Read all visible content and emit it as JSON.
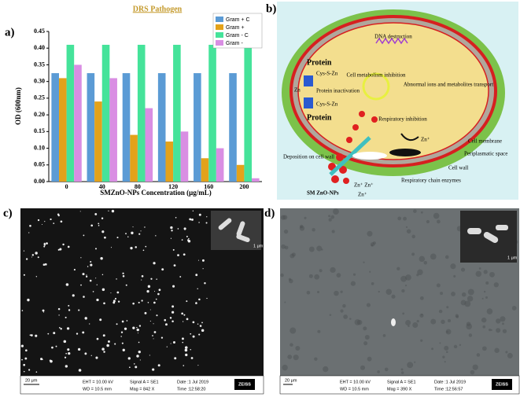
{
  "chart_data": {
    "type": "bar",
    "title": "DRS Pathogen",
    "x_label": "SMZnO-NPs Concentration (μg/mL)",
    "y_label": "OD (600nm)",
    "categories": [
      "0",
      "40",
      "80",
      "120",
      "160",
      "200"
    ],
    "series": [
      {
        "name": "Gram + C",
        "color": "#5b9bd5",
        "values": [
          0.325,
          0.325,
          0.325,
          0.325,
          0.325,
          0.325
        ]
      },
      {
        "name": "Gram +",
        "color": "#e3a21a",
        "values": [
          0.31,
          0.24,
          0.14,
          0.12,
          0.07,
          0.05
        ]
      },
      {
        "name": "Gram - C",
        "color": "#45e39a",
        "values": [
          0.41,
          0.41,
          0.41,
          0.41,
          0.41,
          0.41
        ]
      },
      {
        "name": "Gram -",
        "color": "#d98ee3",
        "values": [
          0.35,
          0.31,
          0.22,
          0.15,
          0.1,
          0.01
        ]
      }
    ],
    "ylim": [
      0,
      0.45
    ],
    "yticks": [
      {
        "value": 0,
        "label": "0.00"
      },
      {
        "value": 0.05,
        "label": "0.05"
      },
      {
        "value": 0.1,
        "label": "0.10"
      },
      {
        "value": 0.15,
        "label": "0.15"
      },
      {
        "value": 0.2,
        "label": "0.20"
      },
      {
        "value": 0.25,
        "label": "0.25"
      },
      {
        "value": 0.3,
        "label": "0.30"
      },
      {
        "value": 0.35,
        "label": "0.35"
      },
      {
        "value": 0.4,
        "label": "0.40"
      },
      {
        "value": 0.45,
        "label": "0.45"
      }
    ],
    "legend": "upper right"
  },
  "panel_labels": [
    "a)",
    "b)",
    "c)",
    "d)"
  ],
  "diagram": {
    "dna": "DNA destruction",
    "protein_top": "Protein",
    "cys_top": "Cys-S-Zn",
    "zn": "Zn",
    "inactivation": "Protein inactivation",
    "cys_bottom": "Cys-S-Zn",
    "protein_bottom": "Protein",
    "metabolism": "Cell metabolism inhibition",
    "abnormal": "Abnormal ions and metabolites transport",
    "respiratory": "Respiratory inhibition",
    "zn_plus": "Zn⁺",
    "membrane": "Cell membrane",
    "periplasm": "Periplasmatic space",
    "wall": "Cell wall",
    "deposition": "Deposition on cell wall",
    "nps": "SM ZnO-NPs",
    "zn_ions": "Zn⁺ Zn⁺",
    "zn_ion": "Zn⁺",
    "chain": "Respiratory chain enzymes"
  },
  "sem_c": {
    "scale": "20 μm",
    "inset_scale": "1 μm",
    "eht": "EHT = 10.00 kV",
    "wd": "WD = 10.5 mm",
    "signal": "Signal A = SE1",
    "mag": "Mag =   842 X",
    "date": "Date :1 Jul 2019",
    "time": "Time :12:58:20",
    "brand": "ZEISS"
  },
  "sem_d": {
    "scale": "20 μm",
    "inset_scale": "1 μm",
    "eht": "EHT = 10.00 kV",
    "wd": "WD = 10.5 mm",
    "signal": "Signal A = SE1",
    "mag": "Mag =   390 X",
    "date": "Date :1 Jul 2019",
    "time": "Time :12:56:57",
    "brand": "ZEISS"
  }
}
